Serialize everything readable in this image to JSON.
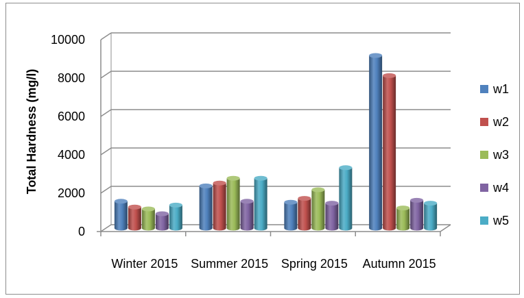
{
  "chart_data": {
    "type": "bar",
    "title": "",
    "xlabel": "",
    "ylabel": "Total Hardness (mg/l)",
    "ylim": [
      0,
      10000
    ],
    "yticks": [
      0,
      2000,
      4000,
      6000,
      8000,
      10000
    ],
    "categories": [
      "Winter 2015",
      "Summer 2015",
      "Spring 2015",
      "Autumn 2015"
    ],
    "series": [
      {
        "name": "w1",
        "color": "#4F81BD",
        "values": [
          1400,
          2200,
          1350,
          9000
        ]
      },
      {
        "name": "w2",
        "color": "#C0504D",
        "values": [
          1100,
          2350,
          1550,
          7950
        ]
      },
      {
        "name": "w3",
        "color": "#9BBB59",
        "values": [
          1000,
          2600,
          2000,
          1050
        ]
      },
      {
        "name": "w4",
        "color": "#8064A2",
        "values": [
          750,
          1400,
          1300,
          1450
        ]
      },
      {
        "name": "w5",
        "color": "#4BACC6",
        "values": [
          1200,
          2600,
          3150,
          1300
        ]
      }
    ],
    "grid": true,
    "legend": "right",
    "style": "3d-cylinder"
  }
}
